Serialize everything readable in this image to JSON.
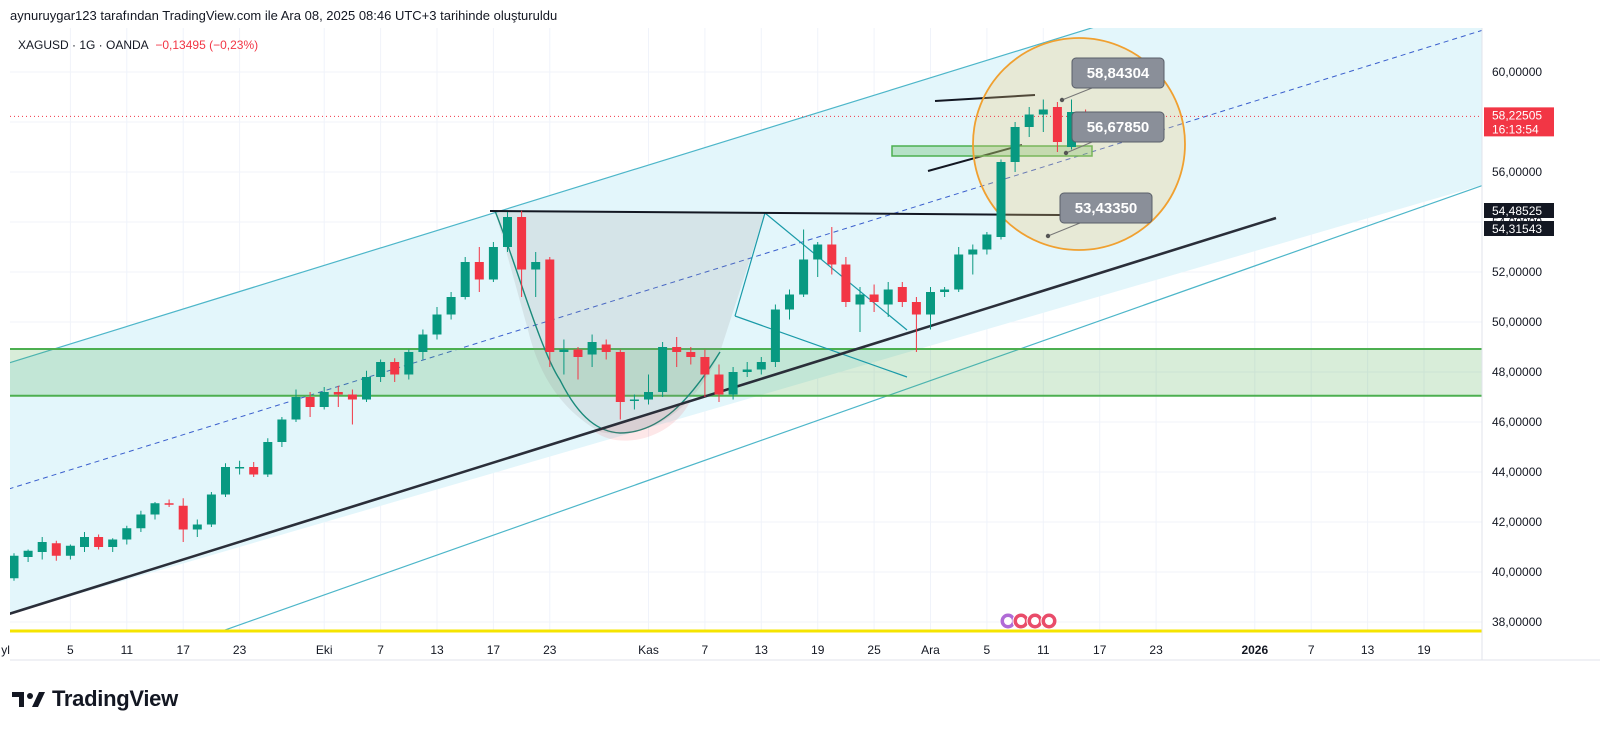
{
  "header": {
    "created_by": "aynuruygar123 tarafından TradingView.com ile Ara 08, 2025 08:46 UTC+3 tarihinde oluşturuldu"
  },
  "symbol": {
    "info": "XAGUSD · 1G · OANDA",
    "change": "−0,13495 (−0,23%)"
  },
  "brand": {
    "name": "TradingView",
    "icon": "tradingview-logo"
  },
  "colors": {
    "up": "#089981",
    "down": "#f23645",
    "channel": "#4db6c9",
    "channel_fill": "#e3f6fb",
    "support_zone": "#4caf50",
    "callout": "#8a8f99",
    "highlight_circle": "#f0a030",
    "ground_line": "#f5e400"
  },
  "chart_data": {
    "type": "candlestick",
    "symbol": "XAGUSD",
    "interval": "1D",
    "y_axis": {
      "ylim": [
        37.2,
        61.6
      ],
      "ticks": [
        38,
        40,
        42,
        44,
        46,
        48,
        50,
        52,
        54,
        56,
        58,
        60
      ],
      "tick_labels": [
        "38,00000",
        "40,00000",
        "42,00000",
        "44,00000",
        "46,00000",
        "48,00000",
        "50,00000",
        "52,00000",
        "54,00000",
        "56,00000",
        "58,00000",
        "60,00000"
      ]
    },
    "x_axis": {
      "ticks": [
        {
          "label": "yl",
          "bold": false,
          "idx": -0.6
        },
        {
          "label": "5",
          "bold": false,
          "idx": 4
        },
        {
          "label": "11",
          "bold": false,
          "idx": 8
        },
        {
          "label": "17",
          "bold": false,
          "idx": 12
        },
        {
          "label": "23",
          "bold": false,
          "idx": 16
        },
        {
          "label": "Eki",
          "bold": false,
          "idx": 22
        },
        {
          "label": "7",
          "bold": false,
          "idx": 26
        },
        {
          "label": "13",
          "bold": false,
          "idx": 30
        },
        {
          "label": "17",
          "bold": false,
          "idx": 34
        },
        {
          "label": "23",
          "bold": false,
          "idx": 38
        },
        {
          "label": "Kas",
          "bold": false,
          "idx": 45
        },
        {
          "label": "7",
          "bold": false,
          "idx": 49
        },
        {
          "label": "13",
          "bold": false,
          "idx": 53
        },
        {
          "label": "19",
          "bold": false,
          "idx": 57
        },
        {
          "label": "25",
          "bold": false,
          "idx": 61
        },
        {
          "label": "Ara",
          "bold": false,
          "idx": 65
        },
        {
          "label": "5",
          "bold": false,
          "idx": 69
        },
        {
          "label": "11",
          "bold": false,
          "idx": 73
        },
        {
          "label": "17",
          "bold": false,
          "idx": 77
        },
        {
          "label": "23",
          "bold": false,
          "idx": 81
        },
        {
          "label": "2026",
          "bold": true,
          "idx": 88
        },
        {
          "label": "7",
          "bold": false,
          "idx": 92
        },
        {
          "label": "13",
          "bold": false,
          "idx": 96
        },
        {
          "label": "19",
          "bold": false,
          "idx": 100
        }
      ]
    },
    "candles": [
      {
        "o": 39.75,
        "h": 40.75,
        "l": 39.65,
        "c": 40.65
      },
      {
        "o": 40.6,
        "h": 40.9,
        "l": 40.4,
        "c": 40.85
      },
      {
        "o": 40.8,
        "h": 41.4,
        "l": 40.5,
        "c": 41.2
      },
      {
        "o": 41.15,
        "h": 41.25,
        "l": 40.45,
        "c": 40.65
      },
      {
        "o": 40.65,
        "h": 41.1,
        "l": 40.5,
        "c": 41.05
      },
      {
        "o": 41.0,
        "h": 41.6,
        "l": 40.8,
        "c": 41.4
      },
      {
        "o": 41.4,
        "h": 41.5,
        "l": 40.9,
        "c": 41.0
      },
      {
        "o": 41.0,
        "h": 41.35,
        "l": 40.8,
        "c": 41.3
      },
      {
        "o": 41.3,
        "h": 41.85,
        "l": 41.1,
        "c": 41.75
      },
      {
        "o": 41.75,
        "h": 42.45,
        "l": 41.6,
        "c": 42.3
      },
      {
        "o": 42.3,
        "h": 42.8,
        "l": 42.1,
        "c": 42.75
      },
      {
        "o": 42.75,
        "h": 42.9,
        "l": 42.6,
        "c": 42.7
      },
      {
        "o": 42.65,
        "h": 42.95,
        "l": 41.2,
        "c": 41.7
      },
      {
        "o": 41.7,
        "h": 42.1,
        "l": 41.4,
        "c": 41.9
      },
      {
        "o": 41.9,
        "h": 43.2,
        "l": 41.8,
        "c": 43.1
      },
      {
        "o": 43.1,
        "h": 44.35,
        "l": 43.0,
        "c": 44.2
      },
      {
        "o": 44.2,
        "h": 44.45,
        "l": 43.9,
        "c": 44.2
      },
      {
        "o": 44.2,
        "h": 44.4,
        "l": 43.8,
        "c": 43.9
      },
      {
        "o": 43.9,
        "h": 45.35,
        "l": 43.8,
        "c": 45.2
      },
      {
        "o": 45.2,
        "h": 46.2,
        "l": 45.0,
        "c": 46.1
      },
      {
        "o": 46.1,
        "h": 47.3,
        "l": 46.0,
        "c": 47.0
      },
      {
        "o": 47.0,
        "h": 47.2,
        "l": 46.2,
        "c": 46.6
      },
      {
        "o": 46.6,
        "h": 47.4,
        "l": 46.5,
        "c": 47.2
      },
      {
        "o": 47.2,
        "h": 47.45,
        "l": 46.6,
        "c": 47.1
      },
      {
        "o": 47.1,
        "h": 47.3,
        "l": 45.9,
        "c": 46.9
      },
      {
        "o": 46.9,
        "h": 48.05,
        "l": 46.8,
        "c": 47.8
      },
      {
        "o": 47.8,
        "h": 48.5,
        "l": 47.6,
        "c": 48.4
      },
      {
        "o": 48.4,
        "h": 48.55,
        "l": 47.6,
        "c": 47.9
      },
      {
        "o": 47.9,
        "h": 48.9,
        "l": 47.7,
        "c": 48.8
      },
      {
        "o": 48.8,
        "h": 49.7,
        "l": 48.5,
        "c": 49.5
      },
      {
        "o": 49.5,
        "h": 50.6,
        "l": 49.3,
        "c": 50.3
      },
      {
        "o": 50.3,
        "h": 51.2,
        "l": 50.1,
        "c": 51.0
      },
      {
        "o": 51.0,
        "h": 52.6,
        "l": 50.9,
        "c": 52.4
      },
      {
        "o": 52.4,
        "h": 53.0,
        "l": 51.2,
        "c": 51.7
      },
      {
        "o": 51.7,
        "h": 53.2,
        "l": 51.6,
        "c": 53.0
      },
      {
        "o": 53.0,
        "h": 54.4,
        "l": 52.8,
        "c": 54.2
      },
      {
        "o": 54.2,
        "h": 54.45,
        "l": 51.0,
        "c": 52.1
      },
      {
        "o": 52.1,
        "h": 52.8,
        "l": 51.0,
        "c": 52.4
      },
      {
        "o": 52.5,
        "h": 52.6,
        "l": 48.2,
        "c": 48.8
      },
      {
        "o": 48.8,
        "h": 49.3,
        "l": 47.9,
        "c": 48.9
      },
      {
        "o": 48.9,
        "h": 49.0,
        "l": 47.7,
        "c": 48.6
      },
      {
        "o": 48.7,
        "h": 49.5,
        "l": 48.2,
        "c": 49.2
      },
      {
        "o": 49.1,
        "h": 49.3,
        "l": 48.5,
        "c": 48.8
      },
      {
        "o": 48.8,
        "h": 48.9,
        "l": 46.1,
        "c": 46.8
      },
      {
        "o": 46.9,
        "h": 47.1,
        "l": 46.5,
        "c": 46.9
      },
      {
        "o": 46.9,
        "h": 47.9,
        "l": 46.7,
        "c": 47.2
      },
      {
        "o": 47.2,
        "h": 49.2,
        "l": 47.0,
        "c": 49.0
      },
      {
        "o": 49.0,
        "h": 49.4,
        "l": 48.2,
        "c": 48.8
      },
      {
        "o": 48.8,
        "h": 49.0,
        "l": 48.3,
        "c": 48.6
      },
      {
        "o": 48.6,
        "h": 48.9,
        "l": 47.0,
        "c": 47.9
      },
      {
        "o": 47.9,
        "h": 48.3,
        "l": 46.8,
        "c": 47.1
      },
      {
        "o": 47.1,
        "h": 48.2,
        "l": 46.9,
        "c": 48.0
      },
      {
        "o": 48.0,
        "h": 48.4,
        "l": 47.8,
        "c": 48.1
      },
      {
        "o": 48.1,
        "h": 48.6,
        "l": 47.9,
        "c": 48.4
      },
      {
        "o": 48.4,
        "h": 50.7,
        "l": 48.2,
        "c": 50.5
      },
      {
        "o": 50.5,
        "h": 51.3,
        "l": 50.1,
        "c": 51.1
      },
      {
        "o": 51.1,
        "h": 53.7,
        "l": 51.0,
        "c": 52.5
      },
      {
        "o": 52.5,
        "h": 53.2,
        "l": 51.8,
        "c": 53.1
      },
      {
        "o": 53.1,
        "h": 53.8,
        "l": 51.9,
        "c": 52.3
      },
      {
        "o": 52.3,
        "h": 52.6,
        "l": 50.6,
        "c": 50.8
      },
      {
        "o": 50.7,
        "h": 51.4,
        "l": 49.6,
        "c": 51.1
      },
      {
        "o": 51.1,
        "h": 51.5,
        "l": 50.4,
        "c": 50.8
      },
      {
        "o": 50.7,
        "h": 51.6,
        "l": 50.2,
        "c": 51.3
      },
      {
        "o": 51.4,
        "h": 51.6,
        "l": 50.6,
        "c": 50.8
      },
      {
        "o": 50.8,
        "h": 51.0,
        "l": 48.8,
        "c": 50.3
      },
      {
        "o": 50.3,
        "h": 51.4,
        "l": 49.7,
        "c": 51.2
      },
      {
        "o": 51.2,
        "h": 51.4,
        "l": 51.0,
        "c": 51.3
      },
      {
        "o": 51.3,
        "h": 53.0,
        "l": 51.2,
        "c": 52.7
      },
      {
        "o": 52.7,
        "h": 53.1,
        "l": 51.9,
        "c": 52.9
      },
      {
        "o": 52.9,
        "h": 53.6,
        "l": 52.7,
        "c": 53.5
      },
      {
        "o": 53.4,
        "h": 56.5,
        "l": 53.3,
        "c": 56.4
      },
      {
        "o": 56.4,
        "h": 58.0,
        "l": 56.0,
        "c": 57.8
      },
      {
        "o": 57.8,
        "h": 58.6,
        "l": 57.4,
        "c": 58.3
      },
      {
        "o": 58.3,
        "h": 58.9,
        "l": 57.6,
        "c": 58.5
      },
      {
        "o": 58.6,
        "h": 58.8,
        "l": 56.8,
        "c": 57.2
      },
      {
        "o": 57.0,
        "h": 58.9,
        "l": 56.9,
        "c": 58.4
      },
      {
        "o": 58.36,
        "h": 58.5,
        "l": 57.5,
        "c": 58.22
      }
    ],
    "overlays": {
      "support_zone": [
        47.05,
        48.92
      ],
      "last_price": 58.22505,
      "callouts": [
        "58,84304",
        "56,67850",
        "53,43350"
      ]
    },
    "price_tags": [
      {
        "label": "58,22505",
        "kind": "last"
      },
      {
        "label": "16:13:54",
        "kind": "countdown"
      },
      {
        "label": "54,48525",
        "kind": "dark"
      },
      {
        "label": "54,31543",
        "kind": "dark"
      }
    ]
  }
}
